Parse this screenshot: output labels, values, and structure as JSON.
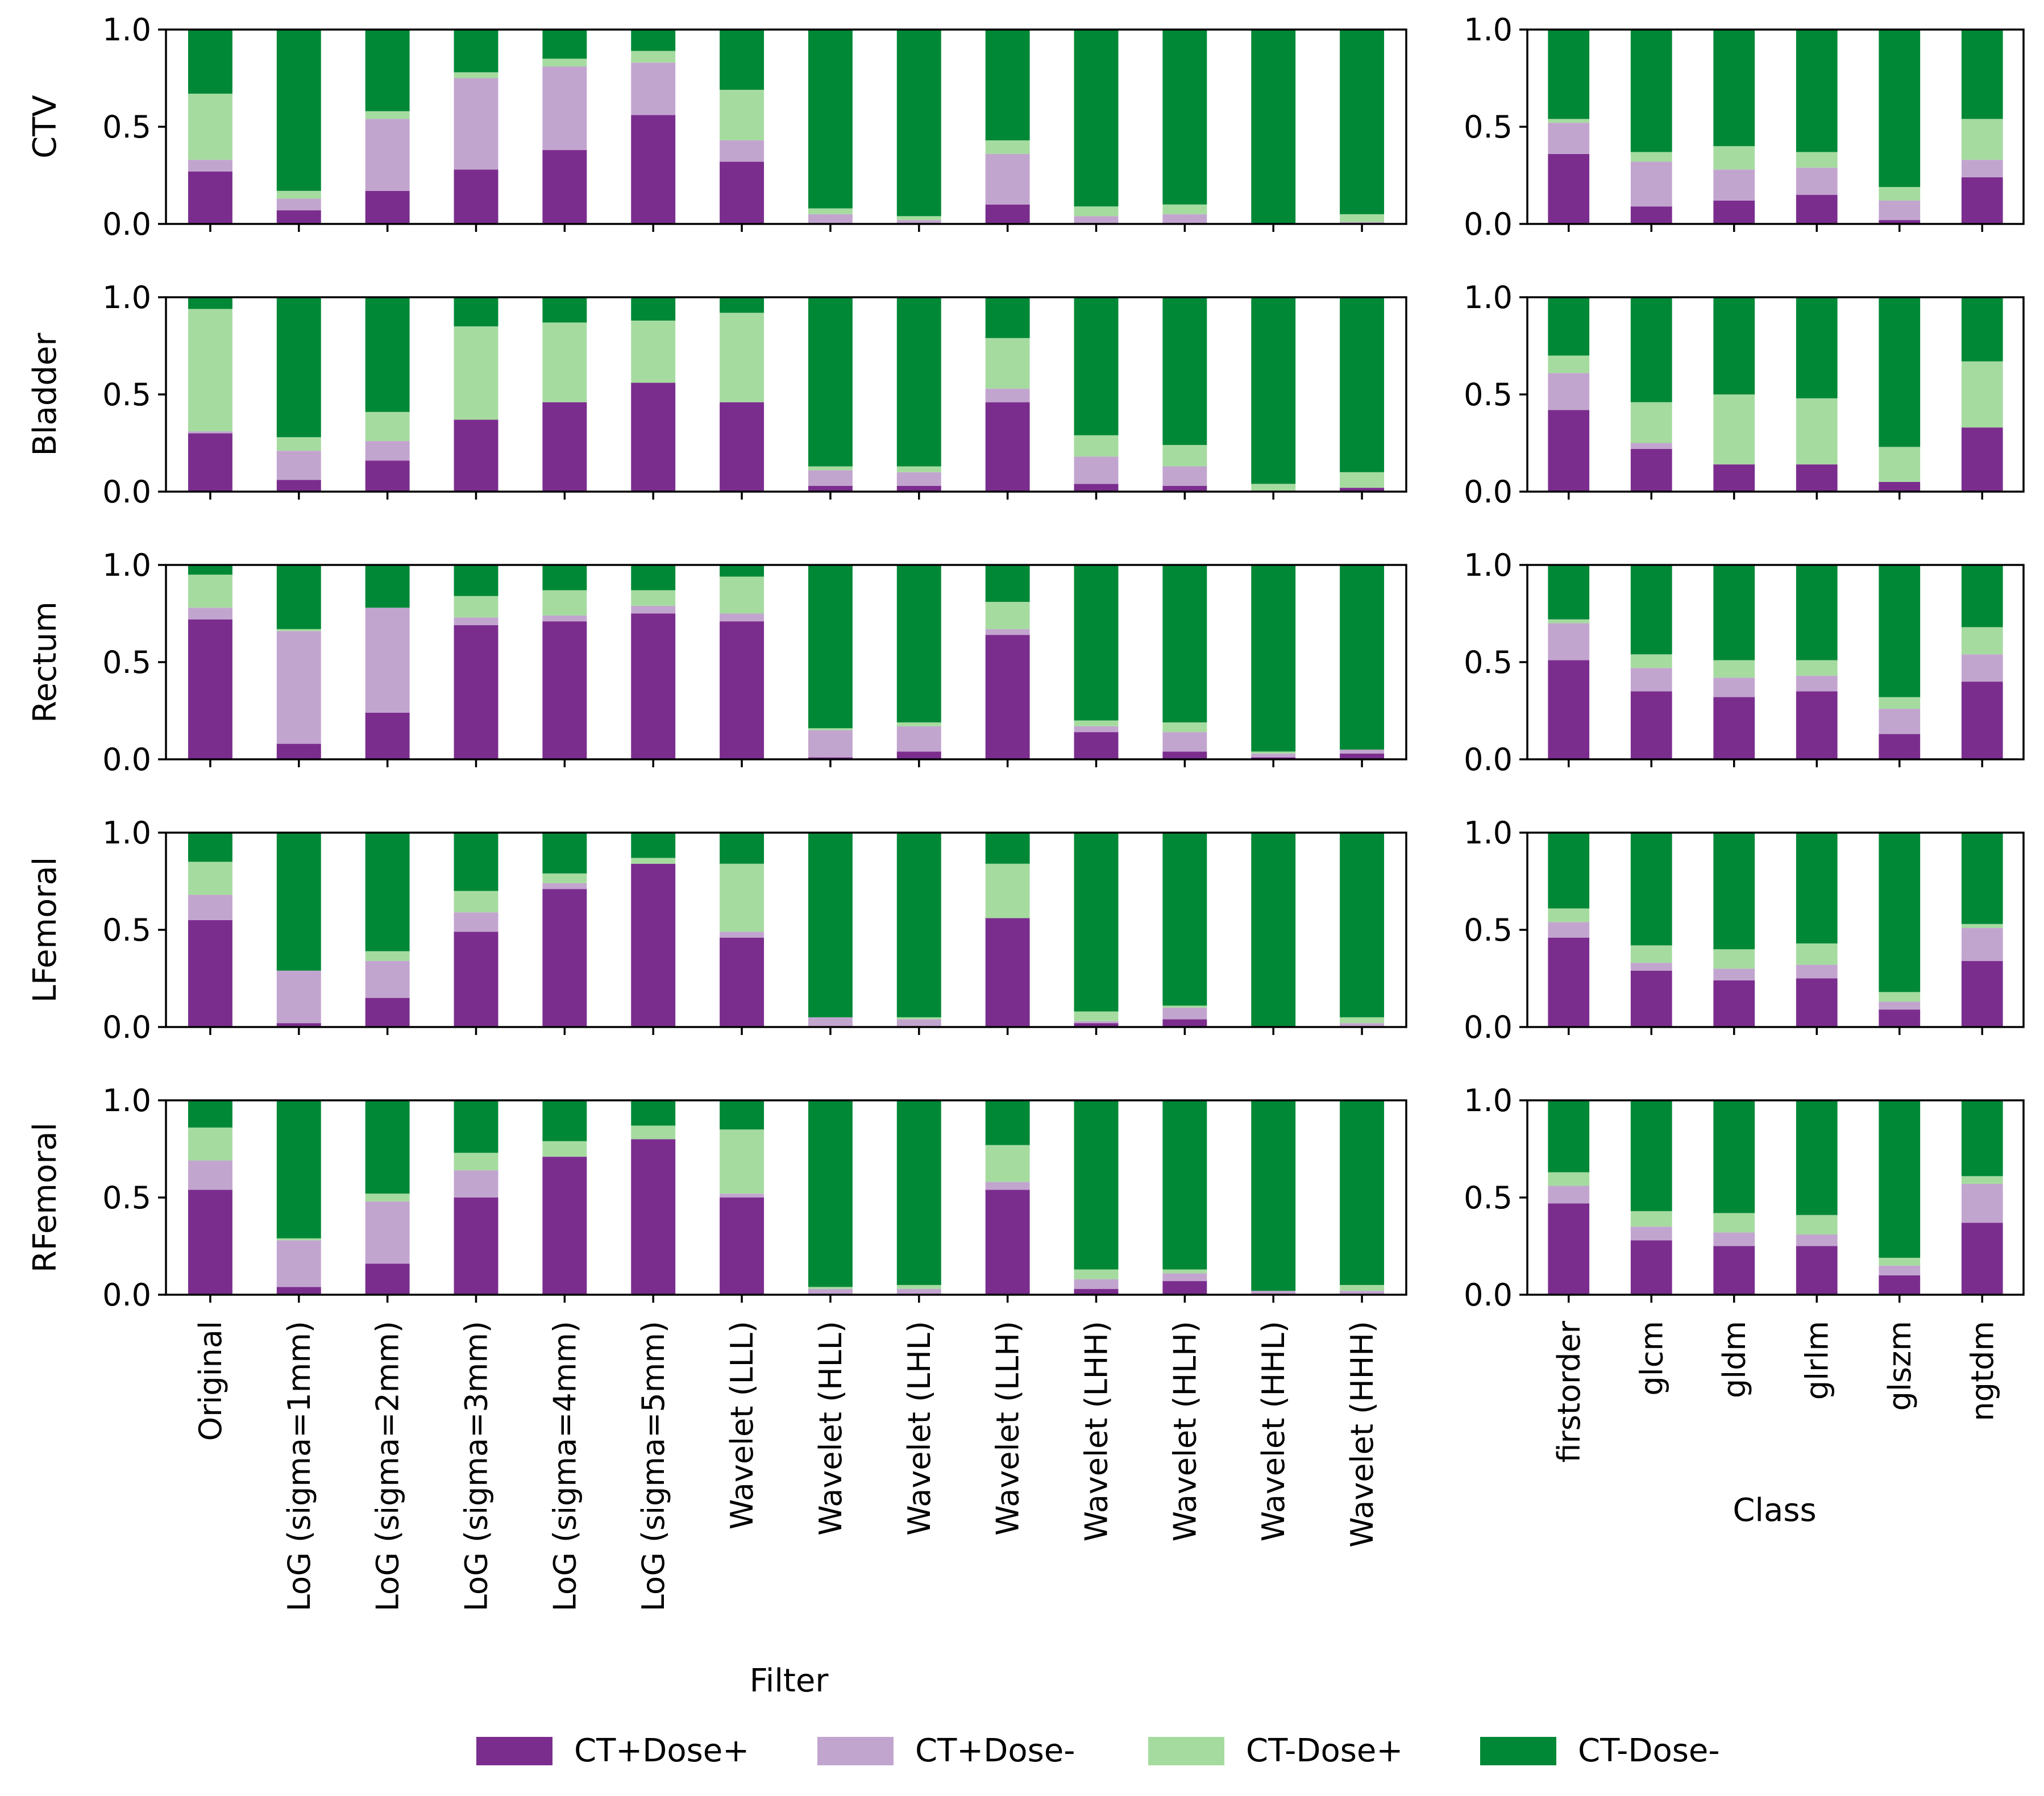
{
  "colors": {
    "CT+Dose+": "#7b2d8e",
    "CT+Dose-": "#c2a5cf",
    "CT-Dose+": "#a6dba0",
    "CT-Dose-": "#008837"
  },
  "chart_data": [
    {
      "type": "bar",
      "stacked": true,
      "panel": "filter",
      "xlabel": "Filter",
      "ylim": [
        0,
        1
      ],
      "yticks": [
        "0.0",
        "0.5",
        "1.0"
      ],
      "categories": [
        "Original",
        "LoG (sigma=1mm)",
        "LoG (sigma=2mm)",
        "LoG (sigma=3mm)",
        "LoG (sigma=4mm)",
        "LoG (sigma=5mm)",
        "Wavelet (LLL)",
        "Wavelet (HLL)",
        "Wavelet (LHL)",
        "Wavelet (LLH)",
        "Wavelet (LHH)",
        "Wavelet (HLH)",
        "Wavelet (HHL)",
        "Wavelet (HHH)"
      ],
      "rows": [
        {
          "label": "CTV",
          "series": [
            {
              "name": "CT+Dose+",
              "values": [
                0.27,
                0.07,
                0.17,
                0.28,
                0.38,
                0.56,
                0.32,
                0.0,
                0.0,
                0.1,
                0.0,
                0.0,
                0.0,
                0.0
              ]
            },
            {
              "name": "CT+Dose-",
              "values": [
                0.06,
                0.06,
                0.37,
                0.47,
                0.43,
                0.27,
                0.11,
                0.05,
                0.02,
                0.26,
                0.04,
                0.05,
                0.0,
                0.01
              ]
            },
            {
              "name": "CT-Dose+",
              "values": [
                0.34,
                0.04,
                0.04,
                0.03,
                0.04,
                0.06,
                0.26,
                0.03,
                0.02,
                0.07,
                0.05,
                0.05,
                0.0,
                0.04
              ]
            },
            {
              "name": "CT-Dose-",
              "values": [
                0.33,
                0.83,
                0.42,
                0.22,
                0.15,
                0.11,
                0.31,
                0.92,
                0.96,
                0.57,
                0.91,
                0.9,
                1.0,
                0.95
              ]
            }
          ]
        },
        {
          "label": "Bladder",
          "series": [
            {
              "name": "CT+Dose+",
              "values": [
                0.3,
                0.06,
                0.16,
                0.37,
                0.46,
                0.56,
                0.46,
                0.03,
                0.03,
                0.46,
                0.04,
                0.03,
                0.0,
                0.02
              ]
            },
            {
              "name": "CT+Dose-",
              "values": [
                0.01,
                0.15,
                0.1,
                0.0,
                0.0,
                0.0,
                0.0,
                0.08,
                0.07,
                0.07,
                0.14,
                0.1,
                0.0,
                0.0
              ]
            },
            {
              "name": "CT-Dose+",
              "values": [
                0.63,
                0.07,
                0.15,
                0.48,
                0.41,
                0.32,
                0.46,
                0.02,
                0.03,
                0.26,
                0.11,
                0.11,
                0.04,
                0.08
              ]
            },
            {
              "name": "CT-Dose-",
              "values": [
                0.06,
                0.72,
                0.59,
                0.15,
                0.13,
                0.12,
                0.08,
                0.87,
                0.87,
                0.21,
                0.71,
                0.76,
                0.96,
                0.9
              ]
            }
          ]
        },
        {
          "label": "Rectum",
          "series": [
            {
              "name": "CT+Dose+",
              "values": [
                0.72,
                0.08,
                0.24,
                0.69,
                0.71,
                0.75,
                0.71,
                0.01,
                0.04,
                0.64,
                0.14,
                0.04,
                0.01,
                0.03
              ]
            },
            {
              "name": "CT+Dose-",
              "values": [
                0.06,
                0.58,
                0.54,
                0.04,
                0.03,
                0.04,
                0.04,
                0.14,
                0.13,
                0.03,
                0.03,
                0.1,
                0.02,
                0.02
              ]
            },
            {
              "name": "CT-Dose+",
              "values": [
                0.17,
                0.01,
                0.0,
                0.11,
                0.13,
                0.08,
                0.19,
                0.01,
                0.02,
                0.14,
                0.03,
                0.05,
                0.01,
                0.0
              ]
            },
            {
              "name": "CT-Dose-",
              "values": [
                0.05,
                0.33,
                0.22,
                0.16,
                0.13,
                0.13,
                0.06,
                0.84,
                0.81,
                0.19,
                0.8,
                0.81,
                0.96,
                0.95
              ]
            }
          ]
        },
        {
          "label": "LFemoral",
          "series": [
            {
              "name": "CT+Dose+",
              "values": [
                0.55,
                0.02,
                0.15,
                0.49,
                0.71,
                0.84,
                0.46,
                0.0,
                0.0,
                0.56,
                0.02,
                0.04,
                0.0,
                0.0
              ]
            },
            {
              "name": "CT+Dose-",
              "values": [
                0.13,
                0.27,
                0.19,
                0.1,
                0.03,
                0.0,
                0.03,
                0.05,
                0.04,
                0.0,
                0.01,
                0.06,
                0.0,
                0.02
              ]
            },
            {
              "name": "CT-Dose+",
              "values": [
                0.17,
                0.0,
                0.05,
                0.11,
                0.05,
                0.03,
                0.35,
                0.0,
                0.01,
                0.28,
                0.05,
                0.01,
                0.0,
                0.03
              ]
            },
            {
              "name": "CT-Dose-",
              "values": [
                0.15,
                0.71,
                0.61,
                0.3,
                0.21,
                0.13,
                0.16,
                0.95,
                0.95,
                0.16,
                0.92,
                0.89,
                1.0,
                0.95
              ]
            }
          ]
        },
        {
          "label": "RFemoral",
          "series": [
            {
              "name": "CT+Dose+",
              "values": [
                0.54,
                0.04,
                0.16,
                0.5,
                0.71,
                0.8,
                0.5,
                0.0,
                0.0,
                0.54,
                0.03,
                0.07,
                0.0,
                0.0
              ]
            },
            {
              "name": "CT+Dose-",
              "values": [
                0.15,
                0.24,
                0.32,
                0.14,
                0.0,
                0.0,
                0.02,
                0.03,
                0.03,
                0.04,
                0.05,
                0.04,
                0.02,
                0.02
              ]
            },
            {
              "name": "CT-Dose+",
              "values": [
                0.17,
                0.01,
                0.04,
                0.09,
                0.08,
                0.07,
                0.33,
                0.01,
                0.02,
                0.19,
                0.05,
                0.02,
                0.0,
                0.03
              ]
            },
            {
              "name": "CT-Dose-",
              "values": [
                0.14,
                0.71,
                0.48,
                0.27,
                0.21,
                0.13,
                0.15,
                0.96,
                0.95,
                0.23,
                0.87,
                0.87,
                0.98,
                0.95
              ]
            }
          ]
        }
      ]
    },
    {
      "type": "bar",
      "stacked": true,
      "panel": "class",
      "xlabel": "Class",
      "ylim": [
        0,
        1
      ],
      "yticks": [
        "0.0",
        "0.5",
        "1.0"
      ],
      "categories": [
        "firstorder",
        "glcm",
        "gldm",
        "glrlm",
        "glszm",
        "ngtdm"
      ],
      "rows": [
        {
          "label": "CTV",
          "series": [
            {
              "name": "CT+Dose+",
              "values": [
                0.36,
                0.09,
                0.12,
                0.15,
                0.02,
                0.24
              ]
            },
            {
              "name": "CT+Dose-",
              "values": [
                0.16,
                0.23,
                0.16,
                0.14,
                0.1,
                0.09
              ]
            },
            {
              "name": "CT-Dose+",
              "values": [
                0.02,
                0.05,
                0.12,
                0.08,
                0.07,
                0.21
              ]
            },
            {
              "name": "CT-Dose-",
              "values": [
                0.46,
                0.63,
                0.6,
                0.63,
                0.81,
                0.46
              ]
            }
          ]
        },
        {
          "label": "Bladder",
          "series": [
            {
              "name": "CT+Dose+",
              "values": [
                0.42,
                0.22,
                0.14,
                0.14,
                0.05,
                0.33
              ]
            },
            {
              "name": "CT+Dose-",
              "values": [
                0.19,
                0.03,
                0.0,
                0.0,
                0.0,
                0.0
              ]
            },
            {
              "name": "CT-Dose+",
              "values": [
                0.09,
                0.21,
                0.36,
                0.34,
                0.18,
                0.34
              ]
            },
            {
              "name": "CT-Dose-",
              "values": [
                0.3,
                0.54,
                0.5,
                0.52,
                0.77,
                0.33
              ]
            }
          ]
        },
        {
          "label": "Rectum",
          "series": [
            {
              "name": "CT+Dose+",
              "values": [
                0.51,
                0.35,
                0.32,
                0.35,
                0.13,
                0.4
              ]
            },
            {
              "name": "CT+Dose-",
              "values": [
                0.19,
                0.12,
                0.1,
                0.08,
                0.13,
                0.14
              ]
            },
            {
              "name": "CT-Dose+",
              "values": [
                0.02,
                0.07,
                0.09,
                0.08,
                0.06,
                0.14
              ]
            },
            {
              "name": "CT-Dose-",
              "values": [
                0.28,
                0.46,
                0.49,
                0.49,
                0.68,
                0.32
              ]
            }
          ]
        },
        {
          "label": "LFemoral",
          "series": [
            {
              "name": "CT+Dose+",
              "values": [
                0.46,
                0.29,
                0.24,
                0.25,
                0.09,
                0.34
              ]
            },
            {
              "name": "CT+Dose-",
              "values": [
                0.08,
                0.04,
                0.06,
                0.07,
                0.04,
                0.17
              ]
            },
            {
              "name": "CT-Dose+",
              "values": [
                0.07,
                0.09,
                0.1,
                0.11,
                0.05,
                0.02
              ]
            },
            {
              "name": "CT-Dose-",
              "values": [
                0.39,
                0.58,
                0.6,
                0.57,
                0.82,
                0.47
              ]
            }
          ]
        },
        {
          "label": "RFemoral",
          "series": [
            {
              "name": "CT+Dose+",
              "values": [
                0.47,
                0.28,
                0.25,
                0.25,
                0.1,
                0.37
              ]
            },
            {
              "name": "CT+Dose-",
              "values": [
                0.09,
                0.07,
                0.07,
                0.06,
                0.05,
                0.2
              ]
            },
            {
              "name": "CT-Dose+",
              "values": [
                0.07,
                0.08,
                0.1,
                0.1,
                0.04,
                0.04
              ]
            },
            {
              "name": "CT-Dose-",
              "values": [
                0.37,
                0.57,
                0.58,
                0.59,
                0.81,
                0.39
              ]
            }
          ]
        }
      ]
    }
  ],
  "legend": {
    "position": "bottom-center",
    "entries": [
      "CT+Dose+",
      "CT+Dose-",
      "CT-Dose+",
      "CT-Dose-"
    ]
  }
}
